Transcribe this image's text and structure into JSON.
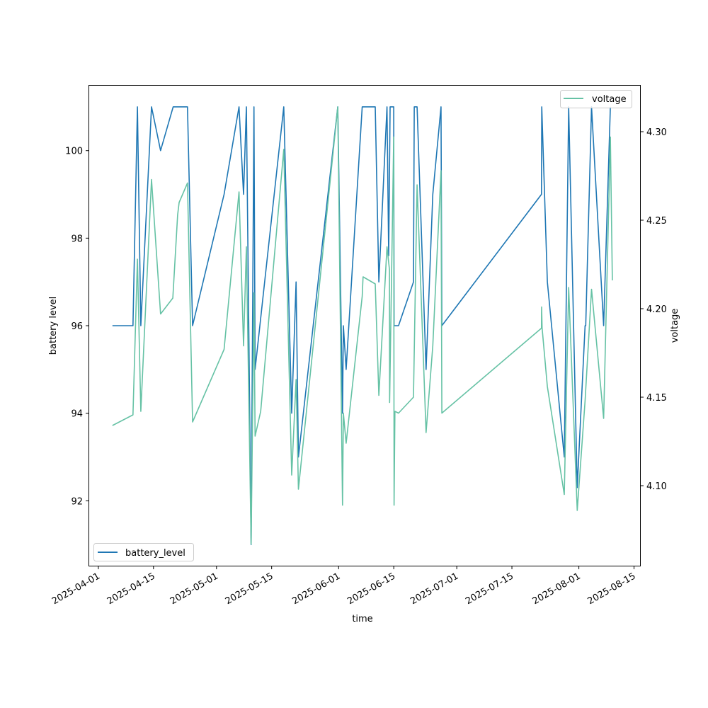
{
  "chart_data": {
    "type": "line",
    "xlabel": "time",
    "ylabel_left": "battery level",
    "ylabel_right": "voltage",
    "xlim": [
      "2025-03-29T12:00",
      "2025-08-16T17:00"
    ],
    "ylim_left": [
      90.5,
      101.5
    ],
    "ylim_right": [
      4.0544,
      4.3264
    ],
    "x_ticks": [
      "2025-04-01",
      "2025-04-15",
      "2025-05-01",
      "2025-05-15",
      "2025-06-01",
      "2025-06-15",
      "2025-07-01",
      "2025-07-15",
      "2025-08-01",
      "2025-08-15"
    ],
    "y_ticks_left": [
      "92",
      "94",
      "96",
      "98",
      "100"
    ],
    "y_ticks_right": [
      "4.10",
      "4.15",
      "4.20",
      "4.25",
      "4.30"
    ],
    "legend_left": {
      "label": "battery_level",
      "placement": "lower-left"
    },
    "legend_right": {
      "label": "voltage",
      "placement": "upper-right"
    },
    "colors": {
      "battery_level": "#1f77b4",
      "voltage": "#66c2a5"
    },
    "series": [
      {
        "name": "battery_level",
        "axis": "left",
        "points": [
          [
            "2025-04-04T14:00",
            96
          ],
          [
            "2025-04-09T19:00",
            96
          ],
          [
            "2025-04-10T22:00",
            101
          ],
          [
            "2025-04-11T19:00",
            96
          ],
          [
            "2025-04-14T12:00",
            101
          ],
          [
            "2025-04-16T19:00",
            100
          ],
          [
            "2025-04-20T00:00",
            101
          ],
          [
            "2025-04-23T15:00",
            101
          ],
          [
            "2025-04-24T22:00",
            96
          ],
          [
            "2025-05-02T22:00",
            99
          ],
          [
            "2025-05-06T17:00",
            101
          ],
          [
            "2025-05-07T21:00",
            99
          ],
          [
            "2025-05-08T14:00",
            101
          ],
          [
            "2025-05-09T19:00",
            91
          ],
          [
            "2025-05-10T12:00",
            101
          ],
          [
            "2025-05-10T19:00",
            95
          ],
          [
            "2025-05-18T02:00",
            101
          ],
          [
            "2025-05-20T02:00",
            94
          ],
          [
            "2025-05-21T05:00",
            97
          ],
          [
            "2025-05-21T19:00",
            93
          ],
          [
            "2025-05-31T19:00",
            101
          ],
          [
            "2025-06-02T00:00",
            94
          ],
          [
            "2025-06-02T05:00",
            96
          ],
          [
            "2025-06-02T22:00",
            95
          ],
          [
            "2025-06-07T00:00",
            101
          ],
          [
            "2025-06-10T07:00",
            101
          ],
          [
            "2025-06-11T05:00",
            97
          ],
          [
            "2025-06-13T07:00",
            101
          ],
          [
            "2025-06-13T17:00",
            97.6
          ],
          [
            "2025-06-14T02:00",
            101
          ],
          [
            "2025-06-15T00:00",
            101
          ],
          [
            "2025-06-15T02:00",
            96
          ],
          [
            "2025-06-16T05:00",
            96
          ],
          [
            "2025-06-20T00:00",
            97
          ],
          [
            "2025-06-20T05:00",
            101
          ],
          [
            "2025-06-20T22:00",
            101
          ],
          [
            "2025-06-23T05:00",
            95
          ],
          [
            "2025-06-24T22:00",
            99
          ],
          [
            "2025-06-27T00:00",
            101
          ],
          [
            "2025-06-27T05:00",
            96
          ],
          [
            "2025-07-22T12:00",
            99
          ],
          [
            "2025-07-22T14:00",
            101
          ],
          [
            "2025-07-24T00:00",
            97
          ],
          [
            "2025-07-28T07:00",
            93
          ],
          [
            "2025-07-29T10:00",
            101
          ],
          [
            "2025-07-31T14:00",
            92.3
          ],
          [
            "2025-08-02T14:00",
            96
          ],
          [
            "2025-08-02T18:00",
            96
          ],
          [
            "2025-08-04T05:00",
            101
          ],
          [
            "2025-08-07T07:00",
            96
          ],
          [
            "2025-08-09T00:00",
            101
          ]
        ]
      },
      {
        "name": "voltage",
        "axis": "right",
        "points": [
          [
            "2025-04-04T14:00",
            4.134
          ],
          [
            "2025-04-09T19:00",
            4.14
          ],
          [
            "2025-04-10T22:00",
            4.228
          ],
          [
            "2025-04-11T19:00",
            4.142
          ],
          [
            "2025-04-14T12:00",
            4.273
          ],
          [
            "2025-04-16T19:00",
            4.197
          ],
          [
            "2025-04-19T22:00",
            4.206
          ],
          [
            "2025-04-21T03:00",
            4.253
          ],
          [
            "2025-04-21T12:00",
            4.26
          ],
          [
            "2025-04-23T15:00",
            4.271
          ],
          [
            "2025-04-24T22:00",
            4.136
          ],
          [
            "2025-05-02T22:00",
            4.177
          ],
          [
            "2025-05-06T17:00",
            4.266
          ],
          [
            "2025-05-07T21:00",
            4.179
          ],
          [
            "2025-05-08T14:00",
            4.235
          ],
          [
            "2025-05-09T19:00",
            4.067
          ],
          [
            "2025-05-10T12:00",
            4.209
          ],
          [
            "2025-05-10T19:00",
            4.128
          ],
          [
            "2025-05-12T05:00",
            4.142
          ],
          [
            "2025-05-18T02:00",
            4.29
          ],
          [
            "2025-05-20T02:00",
            4.106
          ],
          [
            "2025-05-21T05:00",
            4.16
          ],
          [
            "2025-05-21T19:00",
            4.098
          ],
          [
            "2025-05-31T19:00",
            4.314
          ],
          [
            "2025-06-02T00:00",
            4.089
          ],
          [
            "2025-06-02T05:00",
            4.141
          ],
          [
            "2025-06-02T22:00",
            4.124
          ],
          [
            "2025-06-07T00:00",
            4.207
          ],
          [
            "2025-06-07T05:00",
            4.218
          ],
          [
            "2025-06-10T07:00",
            4.214
          ],
          [
            "2025-06-11T05:00",
            4.151
          ],
          [
            "2025-06-13T07:00",
            4.235
          ],
          [
            "2025-06-13T22:00",
            4.222
          ],
          [
            "2025-06-13T23:00",
            4.147
          ],
          [
            "2025-06-15T00:00",
            4.297
          ],
          [
            "2025-06-15T02:00",
            4.089
          ],
          [
            "2025-06-15T07:00",
            4.142
          ],
          [
            "2025-06-16T05:00",
            4.141
          ],
          [
            "2025-06-20T00:00",
            4.15
          ],
          [
            "2025-06-20T22:00",
            4.27
          ],
          [
            "2025-06-23T05:00",
            4.13
          ],
          [
            "2025-06-24T22:00",
            4.179
          ],
          [
            "2025-06-27T00:00",
            4.278
          ],
          [
            "2025-06-27T05:00",
            4.141
          ],
          [
            "2025-07-22T12:00",
            4.189
          ],
          [
            "2025-07-22T13:00",
            4.201
          ],
          [
            "2025-07-22T16:00",
            4.189
          ],
          [
            "2025-07-24T00:00",
            4.156
          ],
          [
            "2025-07-28T07:00",
            4.095
          ],
          [
            "2025-07-29T10:00",
            4.212
          ],
          [
            "2025-07-31T14:00",
            4.086
          ],
          [
            "2025-08-02T14:00",
            4.148
          ],
          [
            "2025-08-04T05:00",
            4.211
          ],
          [
            "2025-08-07T07:00",
            4.138
          ],
          [
            "2025-08-09T00:00",
            4.297
          ],
          [
            "2025-08-09T12:00",
            4.216
          ]
        ]
      }
    ]
  }
}
